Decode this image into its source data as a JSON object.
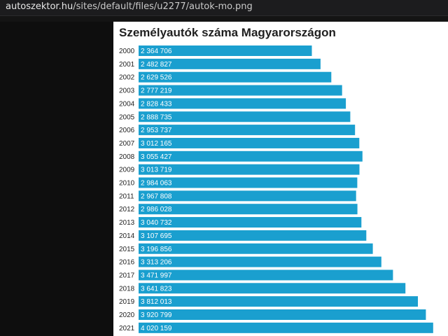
{
  "browser": {
    "address_host": "autoszektor.hu",
    "address_path": "/sites/default/files/u2277/autok-mo.png"
  },
  "chart_data": {
    "type": "bar",
    "orientation": "horizontal",
    "title": "Személyautók száma Magyarországon",
    "bar_color": "#1a9fcf",
    "categories": [
      "2000",
      "2001",
      "2002",
      "2003",
      "2004",
      "2005",
      "2006",
      "2007",
      "2008",
      "2009",
      "2010",
      "2011",
      "2012",
      "2013",
      "2014",
      "2015",
      "2016",
      "2017",
      "2018",
      "2019",
      "2020",
      "2021"
    ],
    "values": [
      2364706,
      2482827,
      2629526,
      2777219,
      2828433,
      2888735,
      2953737,
      3012165,
      3055427,
      3013719,
      2984063,
      2967808,
      2986028,
      3040732,
      3107695,
      3196856,
      3313206,
      3471997,
      3641823,
      3812013,
      3920799,
      4020159
    ],
    "value_labels": [
      "2 364 706",
      "2 482 827",
      "2 629 526",
      "2 777 219",
      "2 828 433",
      "2 888 735",
      "2 953 737",
      "3 012 165",
      "3 055 427",
      "3 013 719",
      "2 984 063",
      "2 967 808",
      "2 986 028",
      "3 040 732",
      "3 107 695",
      "3 196 856",
      "3 313 206",
      "3 471 997",
      "3 641 823",
      "3 812 013",
      "3 920 799",
      "4 020 159"
    ]
  }
}
